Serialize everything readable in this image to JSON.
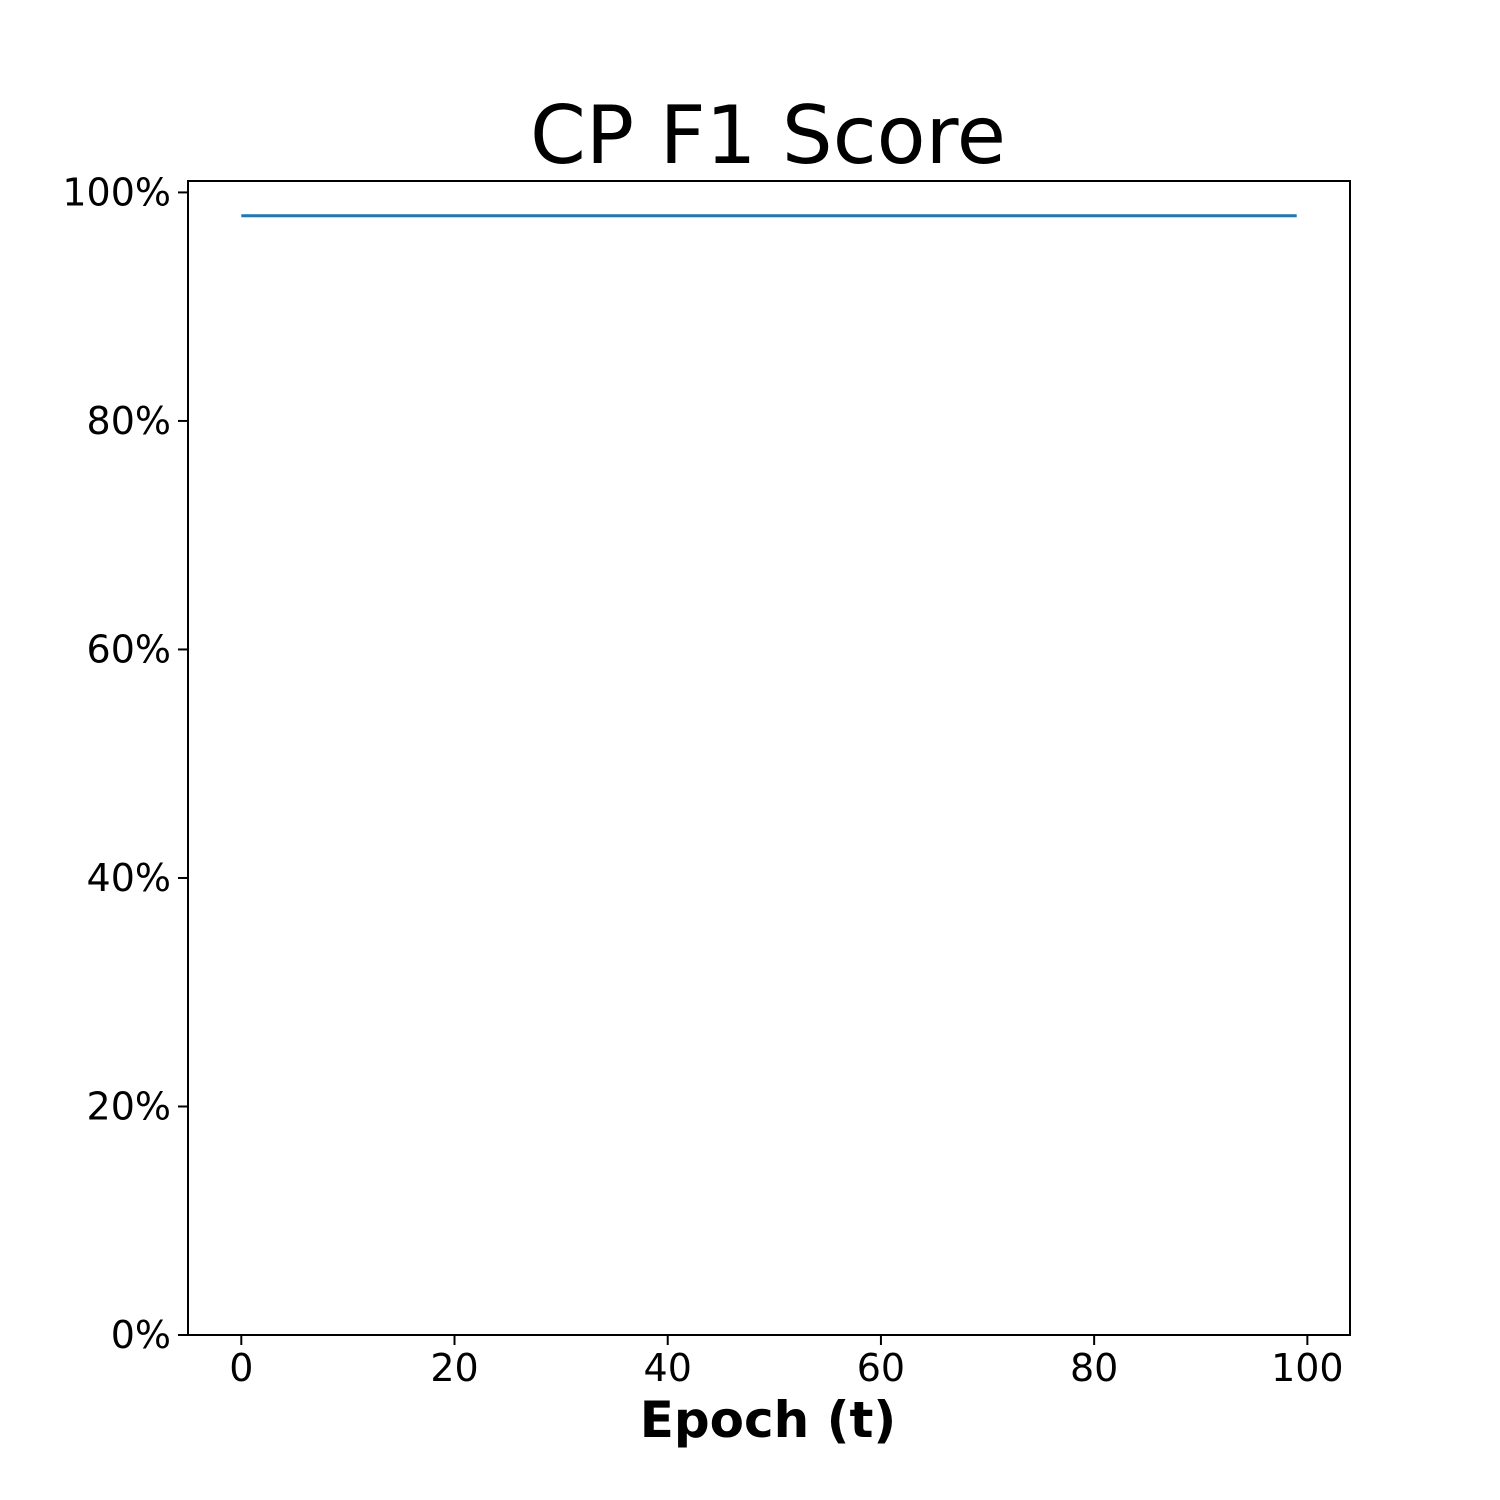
{
  "chart_data": {
    "type": "line",
    "title": "CP F1 Score",
    "xlabel": "Epoch (t)",
    "ylabel": "",
    "xlim": [
      -5,
      104
    ],
    "ylim": [
      0,
      1.01
    ],
    "x_ticks": [
      0,
      20,
      40,
      60,
      80,
      100
    ],
    "x_tick_labels": [
      "0",
      "20",
      "40",
      "60",
      "80",
      "100"
    ],
    "y_ticks": [
      0,
      0.2,
      0.4,
      0.6,
      0.8,
      1.0
    ],
    "y_tick_labels": [
      "0%",
      "20%",
      "40%",
      "60%",
      "80%",
      "100%"
    ],
    "grid": false,
    "legend": "none",
    "series": [
      {
        "color": "#1f77b4",
        "x": [
          0,
          99
        ],
        "y": [
          0.9796,
          0.9796
        ]
      }
    ]
  }
}
